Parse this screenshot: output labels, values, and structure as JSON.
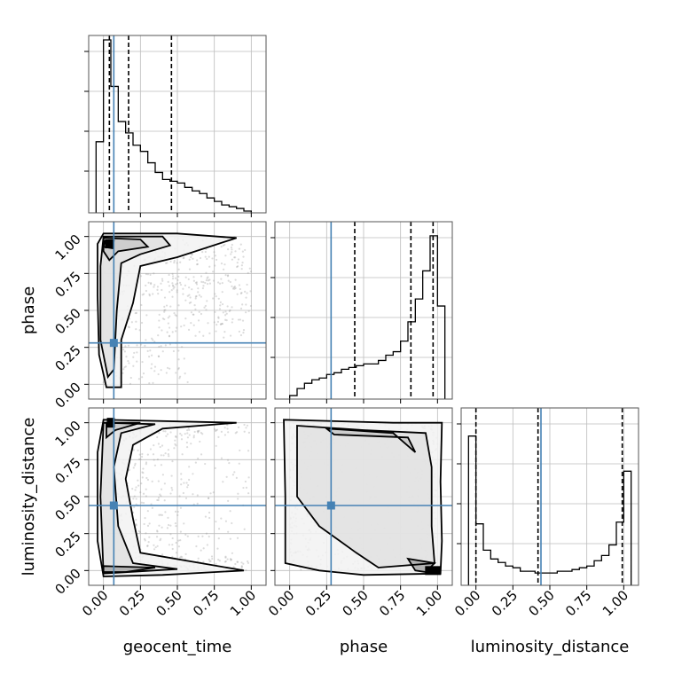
{
  "chart_data": {
    "type": "corner",
    "parameters": [
      "geocent_time",
      "phase",
      "luminosity_distance"
    ],
    "tick_values": [
      0.0,
      0.25,
      0.5,
      0.75,
      1.0
    ],
    "tick_labels": [
      "0.00",
      "0.25",
      "0.50",
      "0.75",
      "1.00"
    ],
    "xlim": [
      -0.1,
      1.1
    ],
    "truths": {
      "geocent_time": 0.07,
      "phase": 0.28,
      "luminosity_distance": 0.44
    },
    "truth_color": "#4682b4",
    "grid": true,
    "histograms": [
      {
        "parameter": "geocent_time",
        "bin_edges": [
          -0.05,
          0.0,
          0.05,
          0.1,
          0.15,
          0.2,
          0.25,
          0.3,
          0.35,
          0.4,
          0.45,
          0.5,
          0.55,
          0.6,
          0.65,
          0.7,
          0.75,
          0.8,
          0.85,
          0.9,
          0.95,
          1.0
        ],
        "heights": [
          0.405,
          0.985,
          0.72,
          0.52,
          0.455,
          0.385,
          0.35,
          0.285,
          0.23,
          0.19,
          0.18,
          0.17,
          0.145,
          0.125,
          0.11,
          0.085,
          0.065,
          0.045,
          0.035,
          0.025,
          0.01
        ],
        "quantiles": [
          0.04,
          0.17,
          0.46
        ]
      },
      {
        "parameter": "phase",
        "bin_edges": [
          0.0,
          0.05,
          0.1,
          0.15,
          0.2,
          0.25,
          0.3,
          0.35,
          0.4,
          0.45,
          0.5,
          0.55,
          0.6,
          0.65,
          0.7,
          0.75,
          0.8,
          0.85,
          0.9,
          0.95,
          1.0,
          1.05
        ],
        "heights": [
          0.02,
          0.06,
          0.09,
          0.11,
          0.12,
          0.14,
          0.15,
          0.17,
          0.18,
          0.19,
          0.2,
          0.2,
          0.22,
          0.25,
          0.27,
          0.33,
          0.44,
          0.57,
          0.73,
          0.93,
          0.53
        ],
        "quantiles": [
          0.44,
          0.82,
          0.97
        ]
      },
      {
        "parameter": "luminosity_distance",
        "bin_edges": [
          -0.05,
          0.0,
          0.05,
          0.1,
          0.15,
          0.2,
          0.25,
          0.3,
          0.35,
          0.4,
          0.45,
          0.5,
          0.55,
          0.6,
          0.65,
          0.7,
          0.75,
          0.8,
          0.85,
          0.9,
          0.95,
          1.0,
          1.05
        ],
        "heights": [
          0.85,
          0.35,
          0.2,
          0.15,
          0.13,
          0.11,
          0.1,
          0.08,
          0.08,
          0.07,
          0.07,
          0.07,
          0.08,
          0.08,
          0.09,
          0.1,
          0.11,
          0.14,
          0.17,
          0.23,
          0.36,
          0.65
        ],
        "quantiles": [
          0.0,
          0.42,
          0.99
        ]
      }
    ],
    "scatter_panels": [
      {
        "x": "geocent_time",
        "y": "phase",
        "density_peak": [
          0.05,
          0.95
        ]
      },
      {
        "x": "geocent_time",
        "y": "luminosity_distance",
        "density_peak": [
          0.05,
          1.0
        ]
      },
      {
        "x": "phase",
        "y": "luminosity_distance",
        "density_peak": [
          0.97,
          0.0
        ]
      }
    ]
  }
}
